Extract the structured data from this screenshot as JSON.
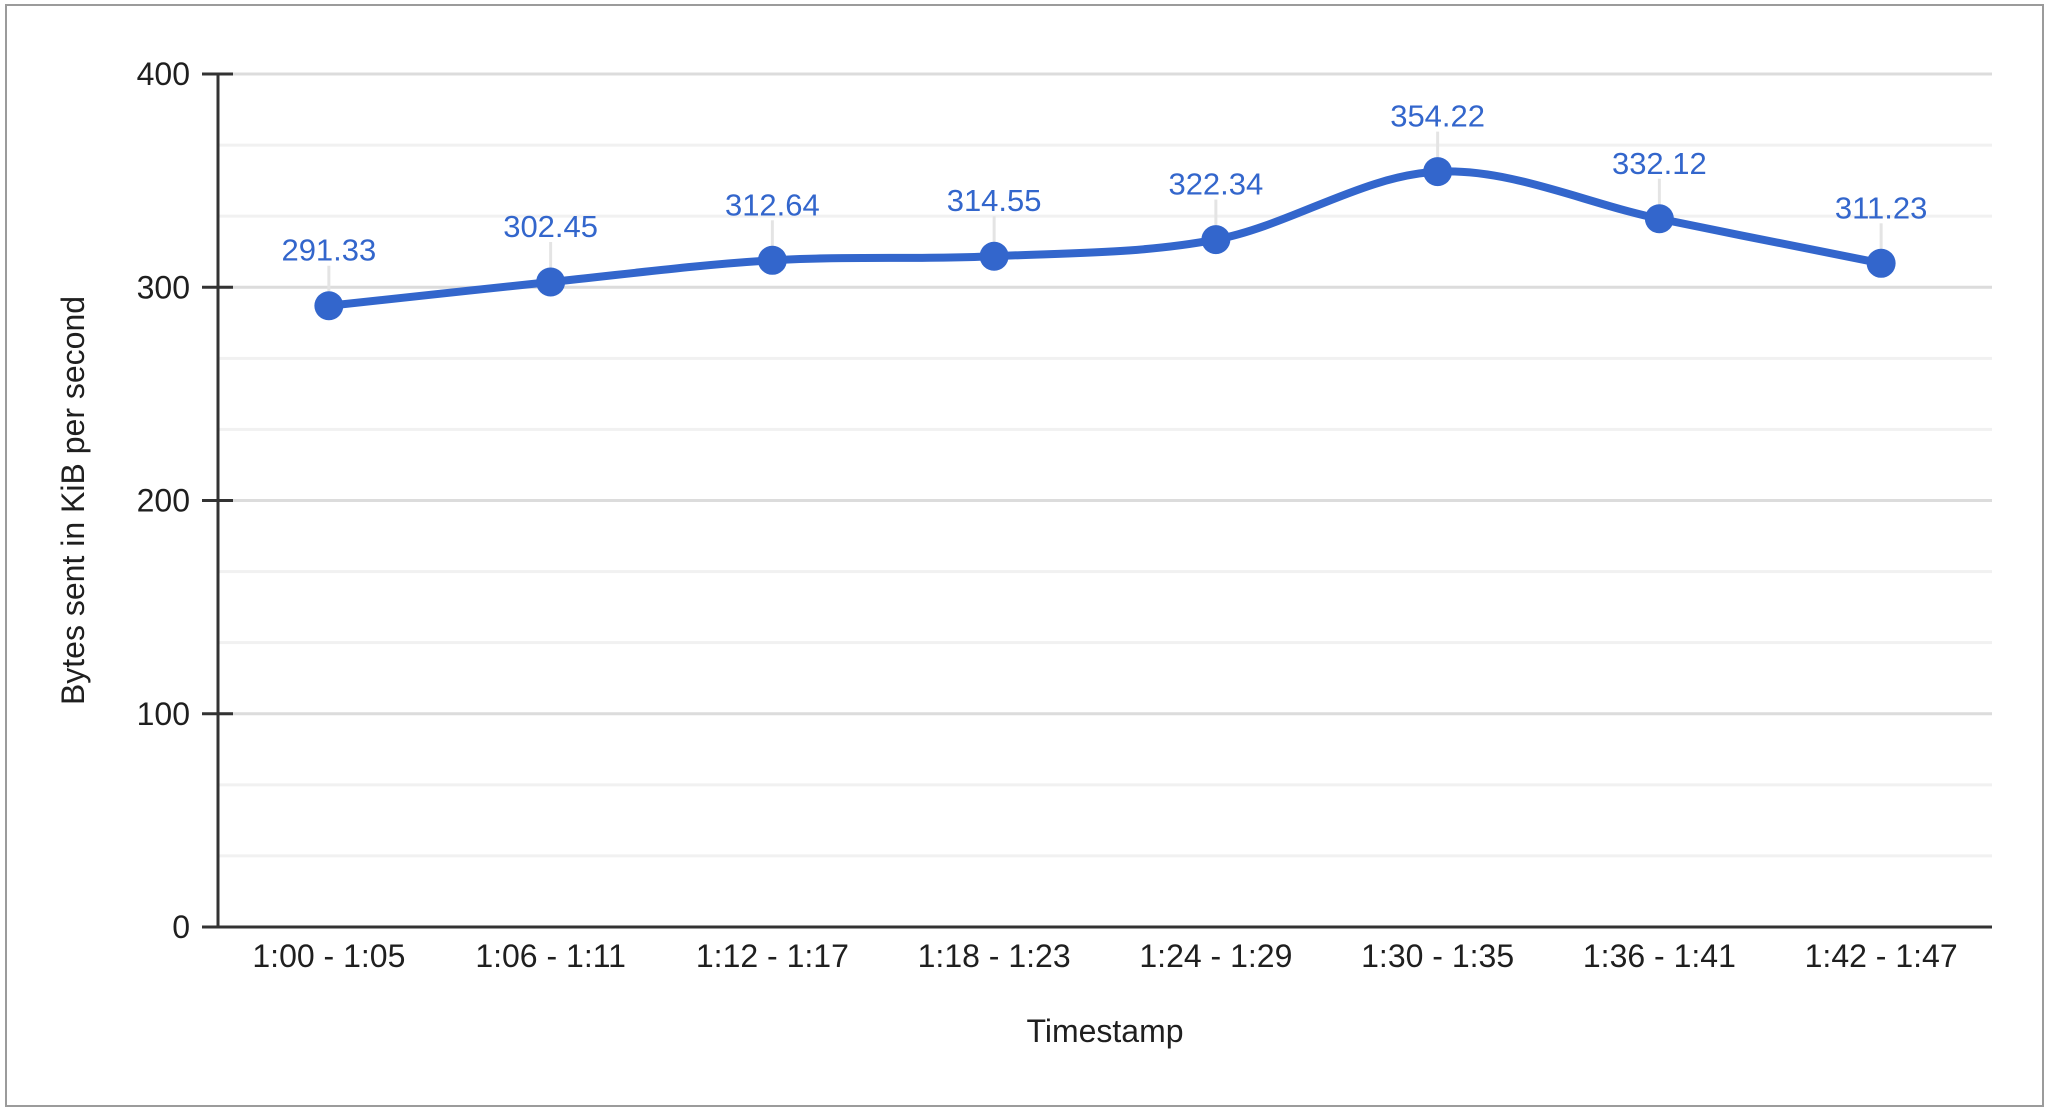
{
  "chart_data": {
    "type": "line",
    "curve": "smooth",
    "categories": [
      "1:00 - 1:05",
      "1:06 - 1:11",
      "1:12 - 1:17",
      "1:18 - 1:23",
      "1:24 - 1:29",
      "1:30 - 1:35",
      "1:36 - 1:41",
      "1:42 - 1:47"
    ],
    "values": [
      291.33,
      302.45,
      312.64,
      314.55,
      322.34,
      354.22,
      332.12,
      311.23
    ],
    "data_labels": [
      "291.33",
      "302.45",
      "312.64",
      "314.55",
      "322.34",
      "354.22",
      "332.12",
      "311.23"
    ],
    "title": "",
    "xlabel": "Timestamp",
    "ylabel": "Bytes sent in KiB per second",
    "ylim": [
      0,
      400
    ],
    "yticks": [
      0,
      100,
      200,
      300,
      400
    ],
    "minor_gridlines_per_major": 2,
    "grid": "on",
    "legend": "none",
    "point_markers": "on"
  },
  "styles": {
    "series_color": "#3366cc",
    "marker_color": "#3366cc",
    "data_label_color": "#3366cc",
    "axis_text_color": "#1f1f1f",
    "axis_title_color": "#1f1f1f",
    "axis_line_color": "#333333",
    "major_gridline_color": "#dcdcdc",
    "minor_gridline_color": "#f1f1f1",
    "label_stem_color": "#e4e4e4",
    "background_color": "#ffffff",
    "border_color": "#9b9b9b"
  }
}
